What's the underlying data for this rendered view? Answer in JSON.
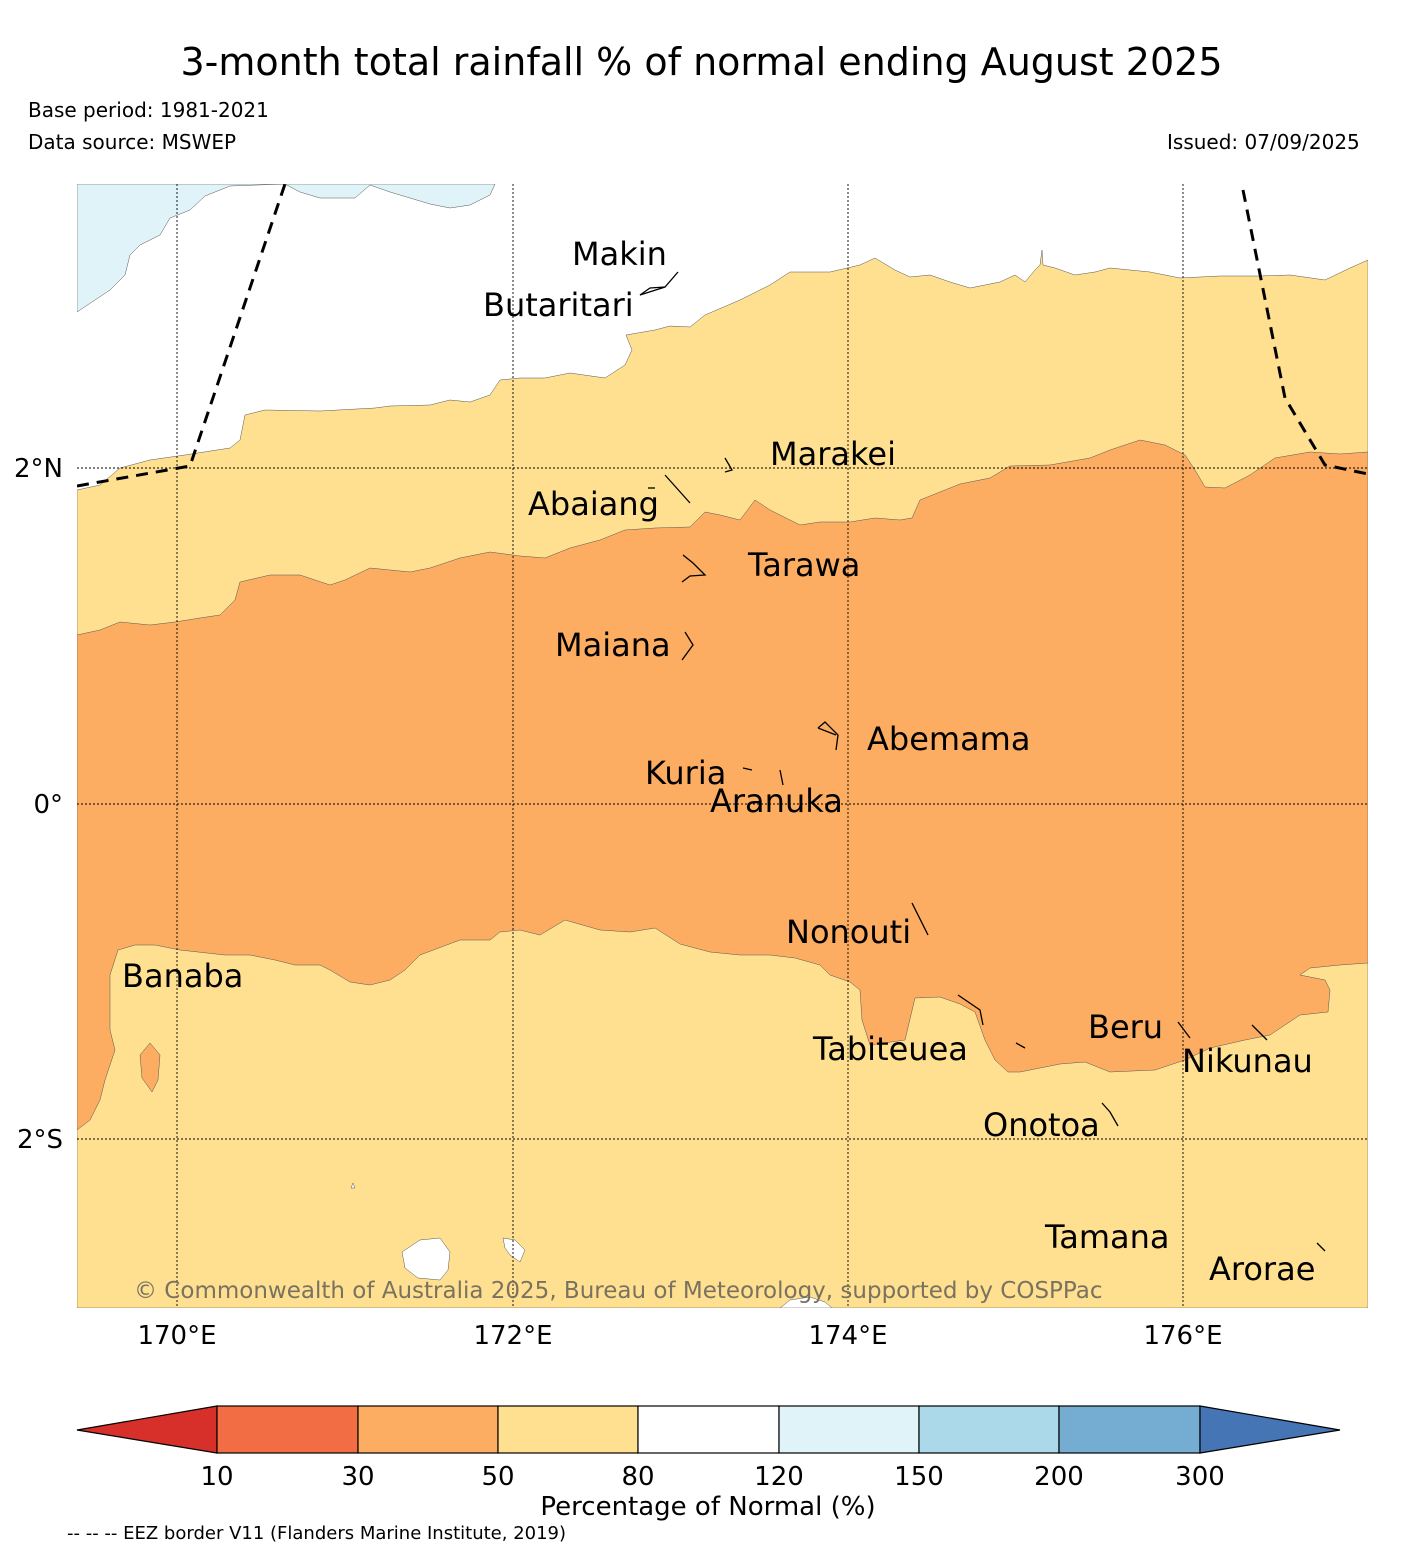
{
  "title": "3-month total rainfall % of normal ending August 2025",
  "base_period": "Base period: 1981-2021",
  "data_source": "Data source: MSWEP",
  "issued": "Issued: 07/09/2025",
  "copyright": "© Commonwealth of Australia 2025, Bureau of Meteorology, supported by COSPPac",
  "lon_labels": [
    "170°E",
    "172°E",
    "174°E",
    "176°E"
  ],
  "lat_labels": [
    "2°N",
    "0°",
    "2°S"
  ],
  "islands": [
    "Makin",
    "Butaritari",
    "Marakei",
    "Abaiang",
    "Tarawa",
    "Maiana",
    "Abemama",
    "Kuria",
    "Aranuka",
    "Nonouti",
    "Banaba",
    "Tabiteuea",
    "Beru",
    "Nikunau",
    "Onotoa",
    "Tamana",
    "Arorae"
  ],
  "colorbar": {
    "label": "Percentage of Normal (%)",
    "ticks": [
      "10",
      "30",
      "50",
      "80",
      "120",
      "150",
      "200",
      "300"
    ],
    "colors": [
      "#d7302a",
      "#f26d43",
      "#fcad62",
      "#fee090",
      "#ffffff",
      "#e0f3f8",
      "#abd9e9",
      "#74add1",
      "#4575b4"
    ]
  },
  "eez_note": "-- -- -- EEZ border V11 (Flanders Marine Institute, 2019)"
}
